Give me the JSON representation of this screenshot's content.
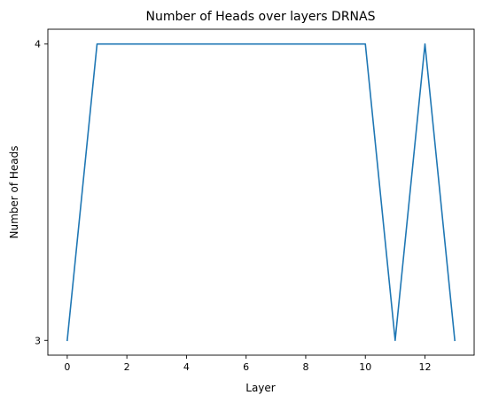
{
  "chart_data": {
    "type": "line",
    "title": "Number of Heads over layers DRNAS",
    "xlabel": "Layer",
    "ylabel": "Number of Heads",
    "x": [
      0,
      1,
      2,
      3,
      4,
      5,
      6,
      7,
      8,
      9,
      10,
      11,
      12,
      13
    ],
    "series": [
      {
        "values": [
          3,
          4,
          4,
          4,
          4,
          4,
          4,
          4,
          4,
          4,
          4,
          3,
          4,
          3
        ],
        "color": "#1f77b4"
      }
    ],
    "xlim": [
      -0.65,
      13.65
    ],
    "ylim": [
      2.95,
      4.05
    ],
    "xticks": [
      0,
      2,
      4,
      6,
      8,
      10,
      12
    ],
    "xtick_labels": [
      "0",
      "2",
      "4",
      "6",
      "8",
      "10",
      "12"
    ],
    "yticks": [
      3,
      4
    ],
    "ytick_labels": [
      "3",
      "4"
    ],
    "grid": false,
    "legend": false
  }
}
